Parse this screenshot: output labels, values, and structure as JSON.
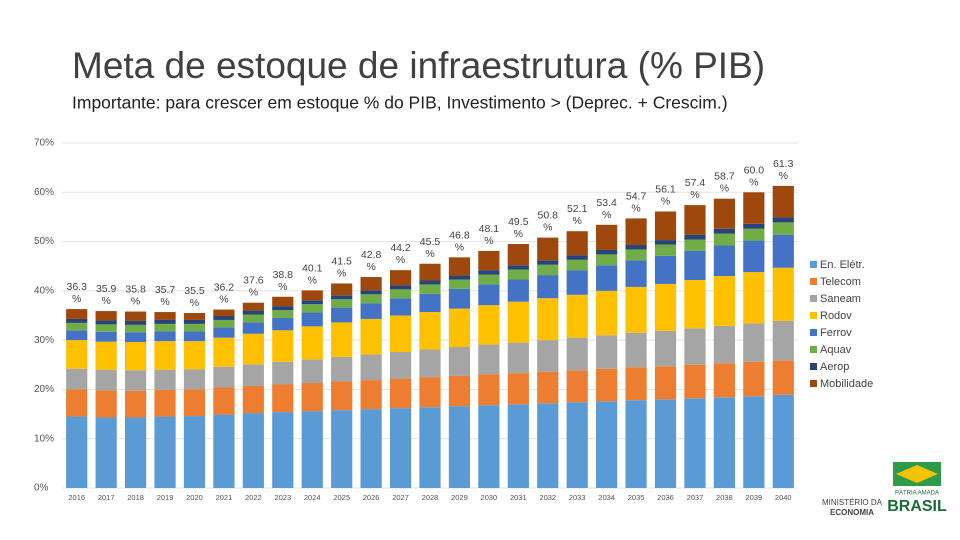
{
  "chart_data": {
    "type": "stacked-bar",
    "title": "Meta de estoque de infraestrutura (% PIB)",
    "subtitle": "Importante: para crescer em estoque % do PIB, Investimento > (Deprec. + Crescim.)",
    "categories": [
      "2016",
      "2017",
      "2018",
      "2019",
      "2020",
      "2021",
      "2022",
      "2023",
      "2024",
      "2025",
      "2026",
      "2027",
      "2028",
      "2029",
      "2030",
      "2031",
      "2032",
      "2033",
      "2034",
      "2035",
      "2036",
      "2037",
      "2038",
      "2039",
      "2040"
    ],
    "series": [
      {
        "name": "En. Elétr.",
        "color": "#5b9bd5",
        "values": [
          14.5,
          14.3,
          14.3,
          14.5,
          14.6,
          14.9,
          15.2,
          15.4,
          15.6,
          15.8,
          16.0,
          16.2,
          16.4,
          16.6,
          16.8,
          17.0,
          17.2,
          17.4,
          17.6,
          17.8,
          18.0,
          18.2,
          18.4,
          18.6,
          18.9
        ]
      },
      {
        "name": "Telecom",
        "color": "#ed7d31",
        "values": [
          5.5,
          5.5,
          5.4,
          5.4,
          5.4,
          5.5,
          5.5,
          5.6,
          5.7,
          5.8,
          5.9,
          6.0,
          6.1,
          6.2,
          6.3,
          6.3,
          6.4,
          6.5,
          6.6,
          6.7,
          6.7,
          6.8,
          6.9,
          7.0,
          7.0
        ]
      },
      {
        "name": "Saneam",
        "color": "#a5a5a5",
        "values": [
          4.2,
          4.2,
          4.2,
          4.1,
          4.1,
          4.2,
          4.4,
          4.6,
          4.8,
          5.0,
          5.2,
          5.4,
          5.6,
          5.8,
          6.0,
          6.2,
          6.4,
          6.6,
          6.8,
          7.0,
          7.2,
          7.4,
          7.6,
          7.8,
          8.0
        ]
      },
      {
        "name": "Rodov",
        "color": "#ffc000",
        "values": [
          5.8,
          5.7,
          5.7,
          5.8,
          5.7,
          5.9,
          6.2,
          6.4,
          6.7,
          7.0,
          7.2,
          7.4,
          7.6,
          7.8,
          8.0,
          8.3,
          8.5,
          8.7,
          9.0,
          9.3,
          9.5,
          9.8,
          10.1,
          10.4,
          10.8
        ]
      },
      {
        "name": "Ferrov",
        "color": "#4472c4",
        "values": [
          2.0,
          2.0,
          2.0,
          2.0,
          2.0,
          2.1,
          2.3,
          2.5,
          2.8,
          3.0,
          3.2,
          3.5,
          3.7,
          4.0,
          4.2,
          4.5,
          4.7,
          5.0,
          5.2,
          5.4,
          5.7,
          5.9,
          6.2,
          6.4,
          6.7
        ]
      },
      {
        "name": "Aquav",
        "color": "#70ad47",
        "values": [
          1.5,
          1.5,
          1.5,
          1.5,
          1.5,
          1.5,
          1.6,
          1.6,
          1.7,
          1.7,
          1.8,
          1.8,
          1.9,
          1.9,
          2.0,
          2.0,
          2.1,
          2.1,
          2.2,
          2.2,
          2.3,
          2.3,
          2.4,
          2.4,
          2.5
        ]
      },
      {
        "name": "Aerop",
        "color": "#264478",
        "values": [
          0.8,
          0.8,
          0.8,
          0.8,
          0.8,
          0.8,
          0.8,
          0.8,
          0.8,
          0.8,
          0.8,
          0.8,
          0.8,
          0.8,
          0.9,
          0.9,
          0.9,
          0.9,
          0.9,
          0.9,
          0.9,
          1.0,
          1.0,
          1.0,
          1.0
        ]
      },
      {
        "name": "Mobilidade",
        "color": "#9e480e",
        "values": [
          2.0,
          1.9,
          1.9,
          1.6,
          1.4,
          1.3,
          1.6,
          1.9,
          2.0,
          2.4,
          2.7,
          3.1,
          3.4,
          3.7,
          3.9,
          4.3,
          4.6,
          4.9,
          5.1,
          5.4,
          5.8,
          6.0,
          6.1,
          6.4,
          6.4
        ]
      }
    ],
    "totals": [
      36.3,
      35.9,
      35.8,
      35.7,
      35.5,
      36.2,
      37.6,
      38.8,
      40.1,
      41.5,
      42.8,
      44.2,
      45.5,
      46.8,
      48.1,
      49.5,
      50.8,
      52.1,
      53.4,
      54.7,
      56.1,
      57.4,
      58.7,
      60.0,
      61.3
    ],
    "total_labels": [
      "36.3 %",
      "35.9 %",
      "35.8 %",
      "35.7 %",
      "35.5 %",
      "36.2 %",
      "37.6 %",
      "38.8 %",
      "40.1 %",
      "41.5 %",
      "42.8 %",
      "44.2 %",
      "45.5 %",
      "46.8 %",
      "48.1 %",
      "49.5 %",
      "50.8 %",
      "52.1 %",
      "53.4 %",
      "54.7 %",
      "56.1 %",
      "57.4 %",
      "58.7 %",
      "60.0 %",
      "61.3 %"
    ],
    "ylim": [
      0,
      70
    ],
    "yticks": [
      {
        "value": 0,
        "label": "0%"
      },
      {
        "value": 10,
        "label": "10%"
      },
      {
        "value": 20,
        "label": "20%"
      },
      {
        "value": 30,
        "label": "30%"
      },
      {
        "value": 40,
        "label": "40%"
      },
      {
        "value": 50,
        "label": "50%"
      },
      {
        "value": 60,
        "label": "60%"
      },
      {
        "value": 70,
        "label": "70%"
      }
    ],
    "grid": true,
    "legend": "right"
  },
  "branding": {
    "ministry": [
      "MINISTÉRIO DA",
      "ECONOMIA"
    ],
    "logo": [
      "PÁTRIA AMADA",
      "BRASIL"
    ]
  }
}
